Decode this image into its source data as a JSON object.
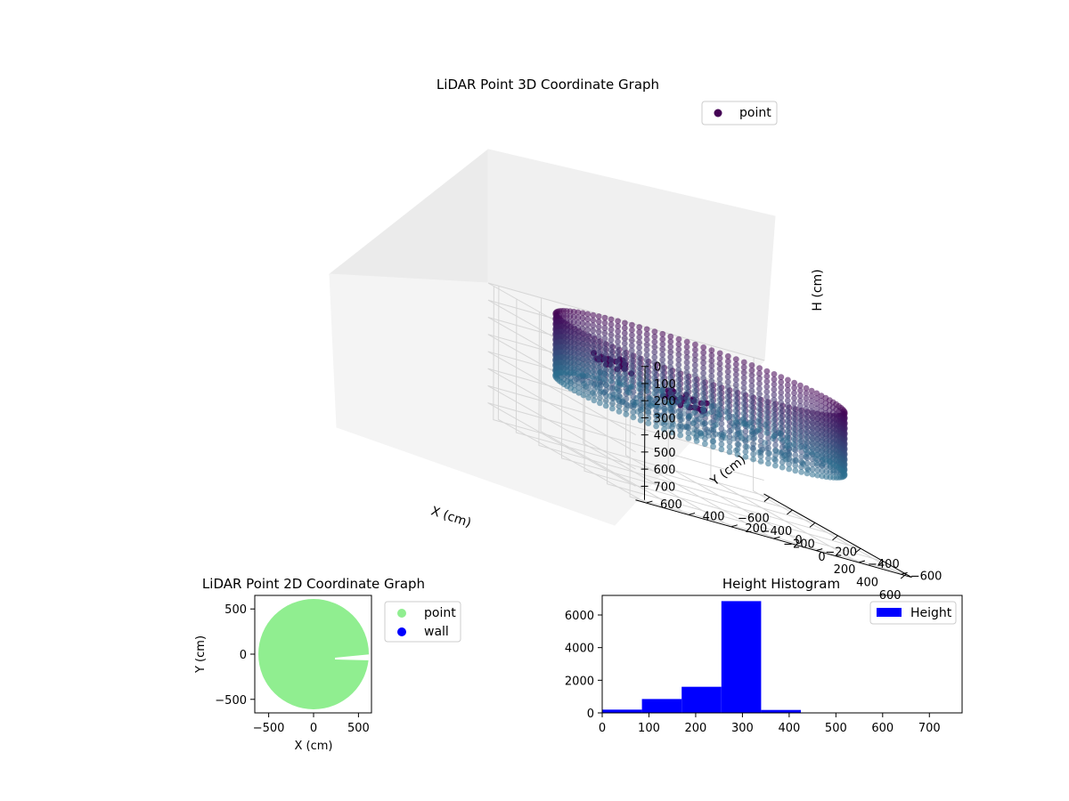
{
  "colors": {
    "dark_purple": "#440154",
    "teal": "#2a788e",
    "mid_blue": "#2c5f8a",
    "light_green": "#90ee90",
    "wall_blue": "#0000ff",
    "hist_blue": "#0000ff",
    "pane": "#f2f2f2"
  },
  "chart_data": [
    {
      "type": "scatter",
      "projection": "3d",
      "title": "LiDAR Point 3D Coordinate Graph",
      "xlabel": "X (cm)",
      "ylabel": "Y (cm)",
      "zlabel": "H (cm)",
      "xlim": [
        -650,
        650
      ],
      "ylim": [
        -650,
        650
      ],
      "zlim": [
        780,
        0
      ],
      "z_inverted": true,
      "xticks": [
        "−600",
        "−400",
        "−200",
        "0",
        "200",
        "400",
        "600"
      ],
      "yticks": [
        "−600",
        "−400",
        "−200",
        "0",
        "200",
        "400",
        "600"
      ],
      "zticks": [
        "0",
        "100",
        "200",
        "300",
        "400",
        "500",
        "600",
        "700"
      ],
      "legend": [
        {
          "label": "point",
          "color": "#440154"
        }
      ],
      "legend_position": "top-right",
      "grid": true,
      "series": [
        {
          "name": "point",
          "description_cylinder": {
            "radius": 600,
            "height_range": [
              0,
              360
            ]
          },
          "clusters": [
            {
              "x": 50,
              "y": 100,
              "h": [
                200,
                260
              ]
            },
            {
              "x": -200,
              "y": 300,
              "h": [
                150,
                200
              ]
            }
          ]
        }
      ]
    },
    {
      "type": "scatter",
      "title": "LiDAR Point 2D Coordinate Graph",
      "xlabel": "X (cm)",
      "ylabel": "Y (cm)",
      "xlim": [
        -650,
        650
      ],
      "ylim": [
        -650,
        650
      ],
      "xticks": [
        "−500",
        "0",
        "500"
      ],
      "yticks": [
        "500",
        "0",
        "−500"
      ],
      "legend": [
        {
          "label": "point",
          "color": "#90ee90"
        },
        {
          "label": "wall",
          "color": "#0000ff"
        }
      ],
      "legend_position": "outside-right",
      "series": [
        {
          "name": "point",
          "region": "disk",
          "radius": 600,
          "gap_angle_deg": [
            -5,
            5
          ],
          "gap_start_radius": 250
        },
        {
          "name": "wall",
          "points": []
        }
      ]
    },
    {
      "type": "bar",
      "subtype": "histogram",
      "title": "Height Histogram",
      "xlim": [
        0,
        770
      ],
      "ylim": [
        0,
        7200
      ],
      "xticks": [
        "0",
        "100",
        "200",
        "300",
        "400",
        "500",
        "600",
        "700"
      ],
      "yticks": [
        "0",
        "2000",
        "4000",
        "6000"
      ],
      "legend": [
        {
          "label": "Height",
          "color": "#0000ff"
        }
      ],
      "legend_position": "top-right",
      "bin_edges": [
        0,
        85,
        170,
        255,
        340,
        425,
        510,
        595,
        680,
        765
      ],
      "values": [
        200,
        850,
        1600,
        6850,
        180,
        5,
        0,
        0,
        0
      ]
    }
  ]
}
